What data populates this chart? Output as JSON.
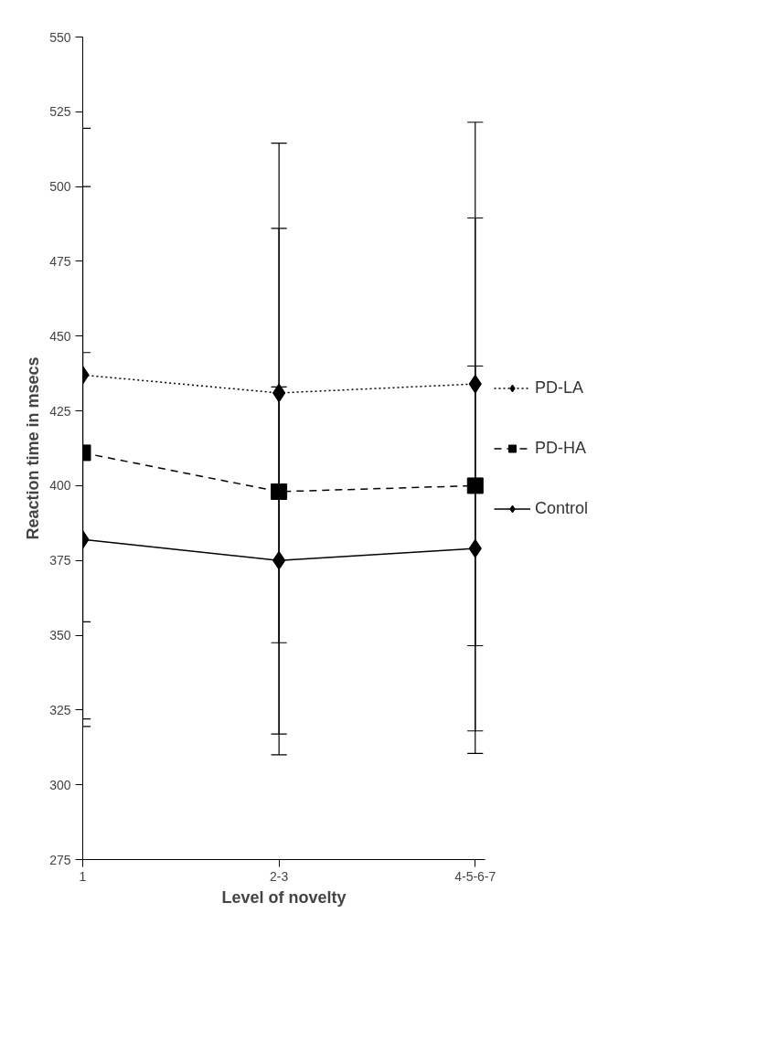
{
  "chart_data": {
    "type": "line",
    "xlabel": "Level of novelty",
    "ylabel": "Reaction time in msecs",
    "categories": [
      "1",
      "2-3",
      "4-5-6-7"
    ],
    "series": [
      {
        "name": "PD-LA",
        "color": "#000000",
        "marker": "diamond",
        "line_style": "dotted",
        "values": [
          437,
          431,
          434
        ],
        "errors": [
          82.5,
          83.5,
          87.5
        ]
      },
      {
        "name": "PD-HA",
        "color": "#000000",
        "marker": "square",
        "line_style": "dashed",
        "values": [
          411,
          398,
          400
        ],
        "errors": [
          89,
          88,
          89.5
        ]
      },
      {
        "name": "Control",
        "color": "#000000",
        "marker": "diamond",
        "line_style": "solid",
        "values": [
          382,
          375,
          379
        ],
        "errors": [
          62.5,
          58,
          61
        ]
      }
    ],
    "ylim": [
      275,
      550
    ],
    "yticks": [
      275,
      300,
      325,
      350,
      375,
      400,
      425,
      450,
      475,
      500,
      525,
      550
    ],
    "grid": false,
    "legend": "right"
  }
}
